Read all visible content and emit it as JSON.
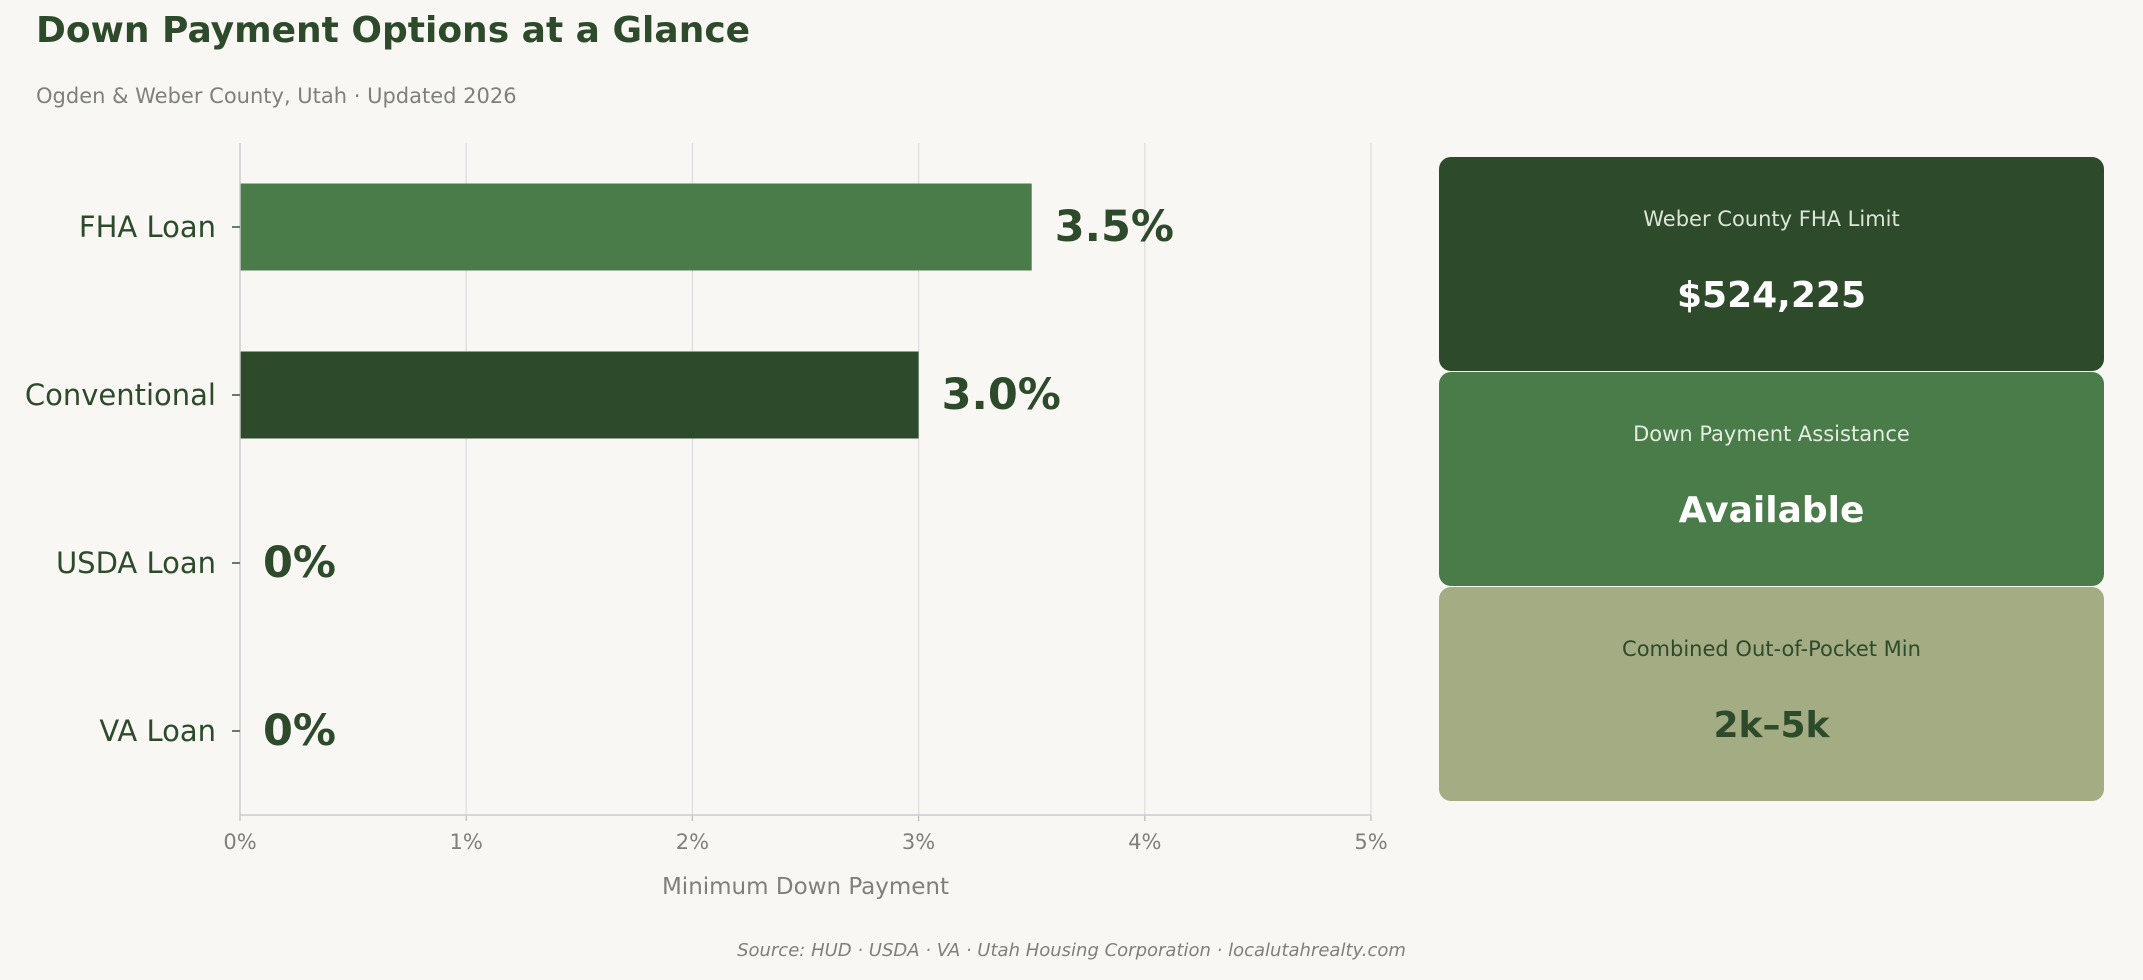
{
  "header": {
    "title": "Down Payment Options at a Glance",
    "subtitle": "Ogden & Weber County, Utah  ·  Updated 2026"
  },
  "chart_data": {
    "type": "bar",
    "orientation": "horizontal",
    "categories": [
      "FHA Loan",
      "Conventional",
      "USDA Loan",
      "VA Loan"
    ],
    "values": [
      3.5,
      3.0,
      0,
      0
    ],
    "data_labels": [
      "3.5%",
      "3.0%",
      "0%",
      "0%"
    ],
    "bar_colors": [
      "#4a7c49",
      "#2d4a2b",
      "#2d4a2b",
      "#2d4a2b"
    ],
    "xlabel": "Minimum Down Payment",
    "ylabel": "",
    "xlim": [
      0,
      5
    ],
    "xticks": [
      0,
      1,
      2,
      3,
      4,
      5
    ],
    "xtick_labels": [
      "0%",
      "1%",
      "2%",
      "3%",
      "4%",
      "5%"
    ],
    "grid": "vertical",
    "legend": "none"
  },
  "cards": [
    {
      "label": "Weber County FHA Limit",
      "value": "$524,225",
      "color": "#2d4a2b"
    },
    {
      "label": "Down Payment Assistance",
      "value": "Available",
      "color": "#4a7c49"
    },
    {
      "label": "Combined Out-of-Pocket Min",
      "value": "2k–5k",
      "color": "#a4ac84"
    }
  ],
  "footer": {
    "source": "Source: HUD · USDA · VA · Utah Housing Corporation · localutahrealty.com"
  },
  "colors": {
    "background": "#f9f7f4",
    "dark_green": "#2d4a2b",
    "mid_green": "#4a7c49",
    "sage": "#a4ac84",
    "muted_text": "#80807a",
    "grid": "#dddddd"
  }
}
